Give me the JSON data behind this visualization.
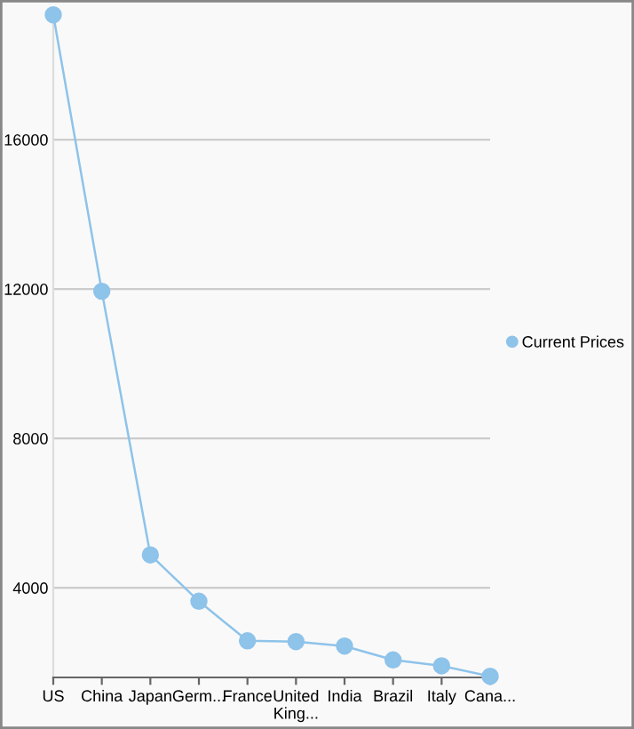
{
  "chart_data": {
    "type": "line",
    "categories": [
      "US",
      "China",
      "Japan",
      "Germ...",
      "France",
      "United\nKing...",
      "India",
      "Brazil",
      "Italy",
      "Cana..."
    ],
    "series": [
      {
        "name": "Current Prices",
        "color": "#8ec3ea",
        "values": [
          19340,
          11940,
          4880,
          3640,
          2580,
          2560,
          2440,
          2070,
          1910,
          1630
        ]
      }
    ],
    "ylim": [
      1600,
      19500
    ],
    "yticks": [
      4000,
      8000,
      12000,
      16000
    ],
    "grid": "y",
    "legend": "right",
    "marker": "circle",
    "line_style": "solid"
  }
}
